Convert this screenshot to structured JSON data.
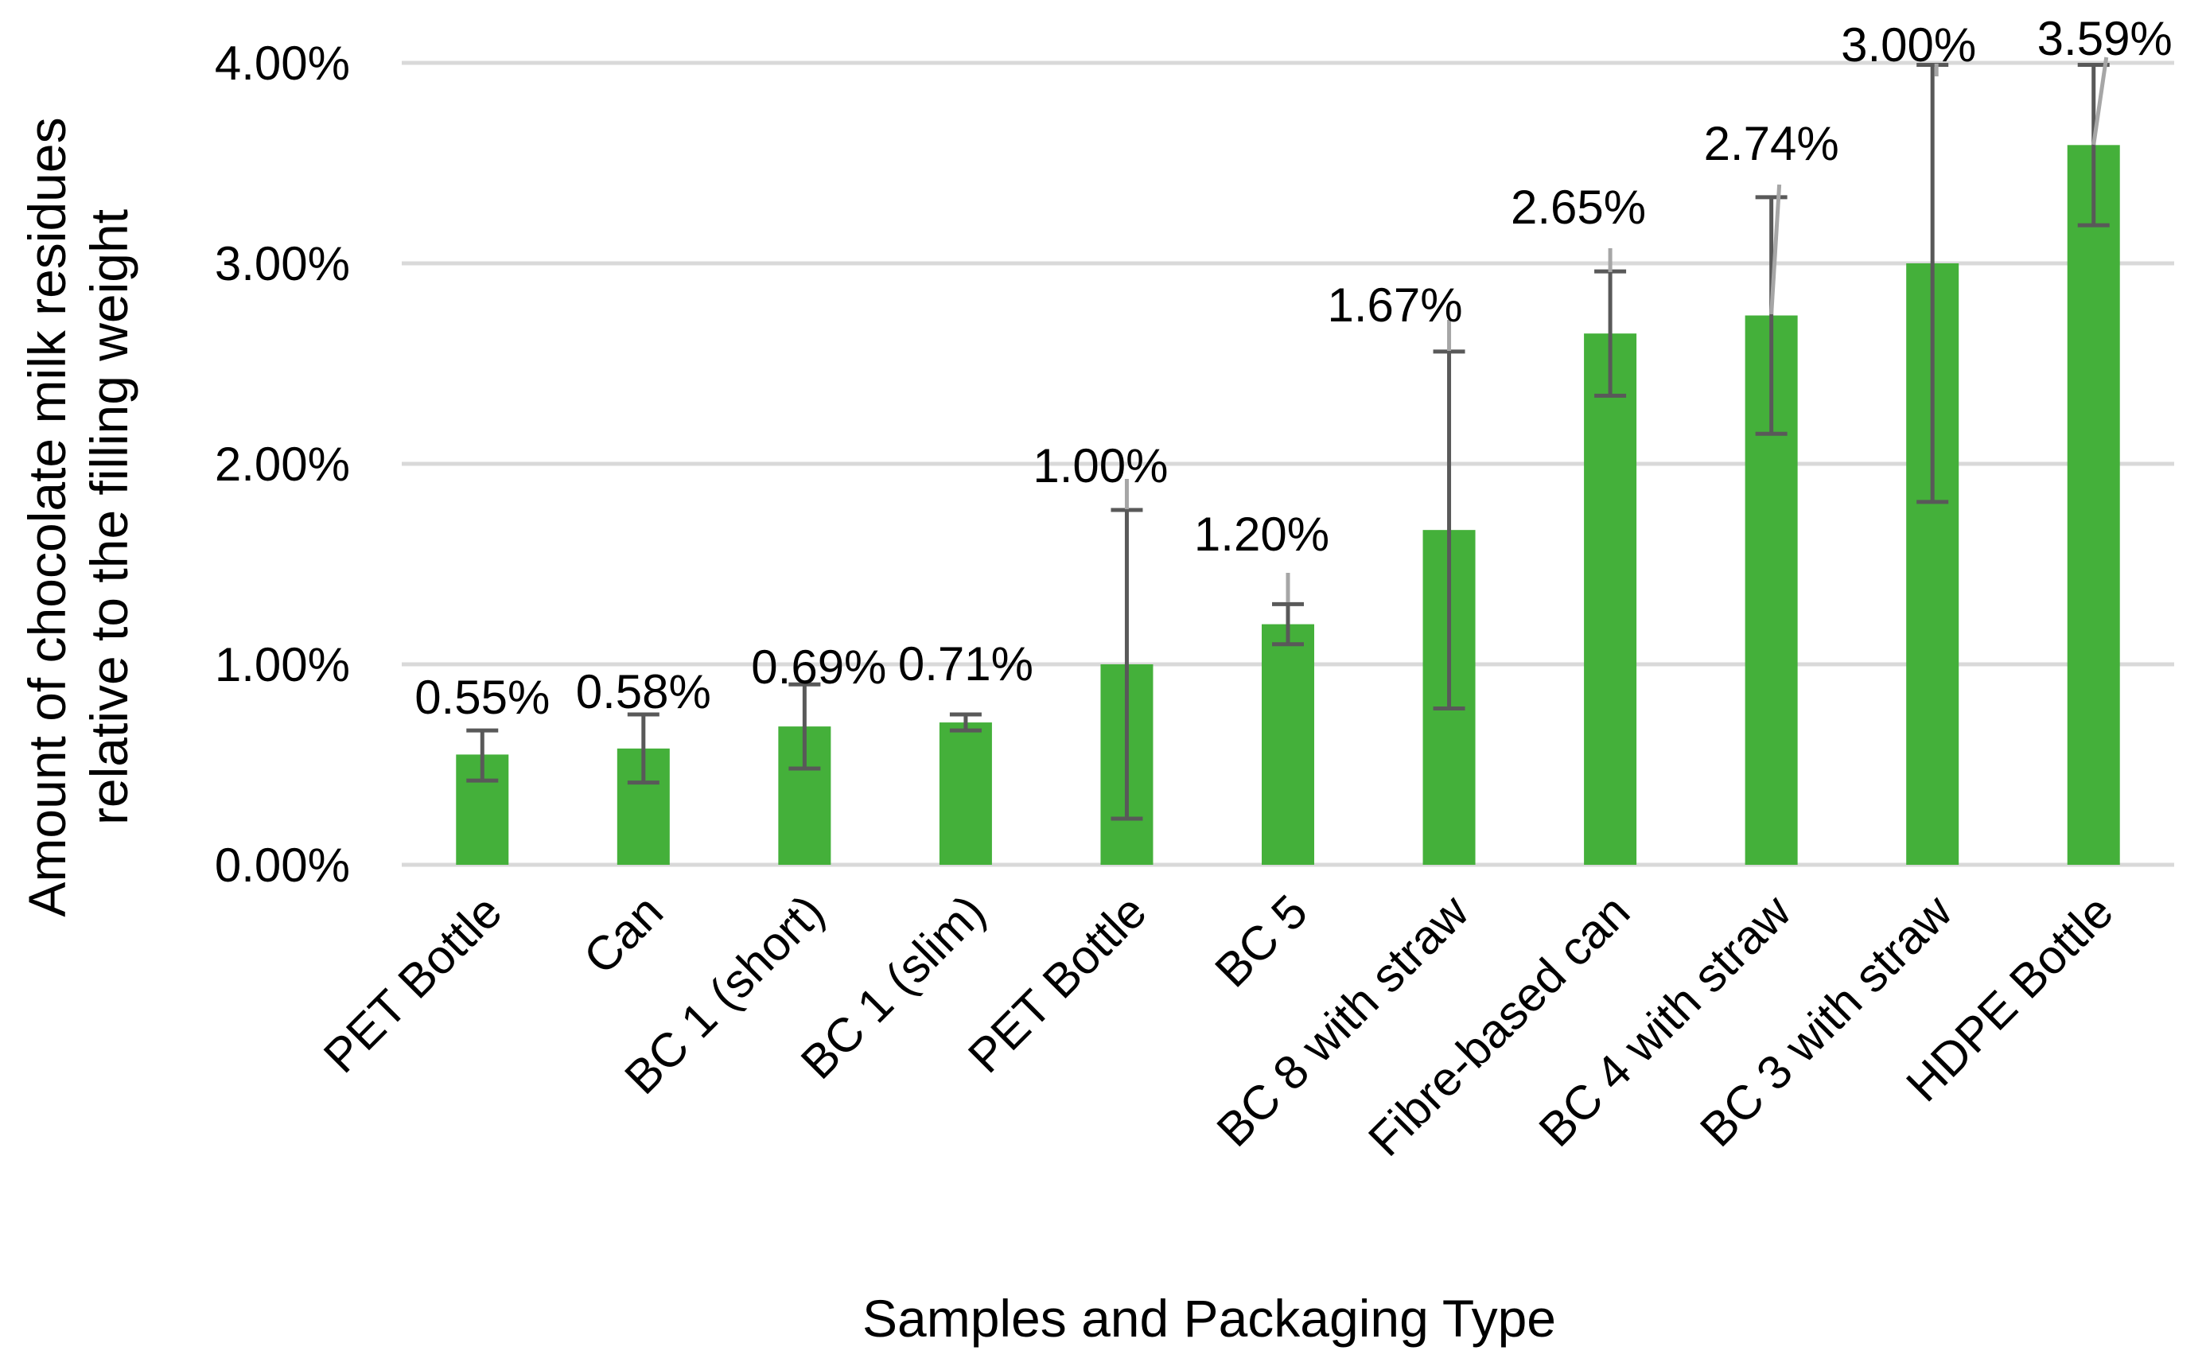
{
  "chart_data": {
    "type": "bar",
    "title": "",
    "xlabel": "Samples and Packaging Type",
    "ylabel_lines": [
      "Amount of chocolate milk residues",
      "relative to the filling weight"
    ],
    "ylim": [
      0,
      4
    ],
    "yticks": [
      0,
      1,
      2,
      3,
      4
    ],
    "ytick_labels": [
      "0.00%",
      "1.00%",
      "2.00%",
      "3.00%",
      "4.00%"
    ],
    "categories": [
      "PET Bottle",
      "Can",
      "BC 1 (short)",
      "BC 1 (slim)",
      "PET Bottle",
      "BC 5",
      "BC 8 with straw",
      "Fibre-based can",
      "BC 4 with straw",
      "BC 3 with straw",
      "HDPE Bottle"
    ],
    "values": [
      0.55,
      0.58,
      0.69,
      0.71,
      1.0,
      1.2,
      1.67,
      2.65,
      2.74,
      3.0,
      3.59
    ],
    "value_labels": [
      "0.55%",
      "0.58%",
      "0.69%",
      "0.71%",
      "1.00%",
      "1.20%",
      "1.67%",
      "2.65%",
      "2.74%",
      "3.00%",
      "3.59%"
    ],
    "error_low": [
      0.42,
      0.41,
      0.48,
      0.67,
      0.23,
      1.1,
      0.78,
      2.34,
      2.15,
      1.81,
      3.19
    ],
    "error_high": [
      0.67,
      0.75,
      0.9,
      0.75,
      1.77,
      1.3,
      2.56,
      2.96,
      3.33,
      3.99,
      3.99
    ],
    "bar_color": "#44B03A",
    "error_color": "#595959",
    "grid_color": "#D9D9D9",
    "grid": true,
    "legend": "none"
  }
}
